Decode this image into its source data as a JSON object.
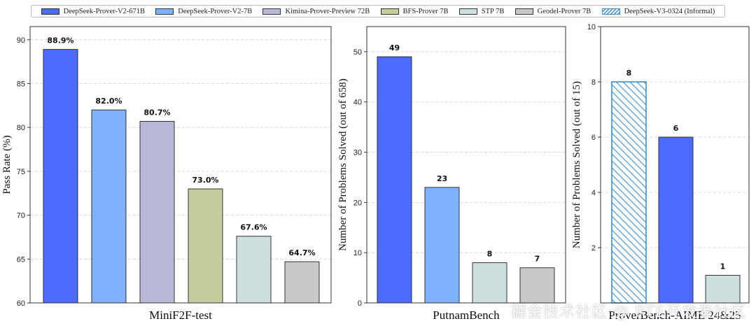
{
  "legend": {
    "items": [
      {
        "label": "DeepSeek-Prover-V2-671B",
        "color": "#4d6bfe",
        "pattern": "solid"
      },
      {
        "label": "DeepSeek-Prover-V2-7B",
        "color": "#7fb2fe",
        "pattern": "solid"
      },
      {
        "label": "Kimina-Prover-Preview 72B",
        "color": "#b8b8d8",
        "pattern": "solid"
      },
      {
        "label": "BFS-Prover 7B",
        "color": "#c5cd9e",
        "pattern": "solid"
      },
      {
        "label": "STP 7B",
        "color": "#cde0df",
        "pattern": "solid"
      },
      {
        "label": "Geodel-Prover 7B",
        "color": "#c8c8c8",
        "pattern": "solid"
      },
      {
        "label": "DeepSeek-V3-0324 (Informal)",
        "color": "#3a8fd0",
        "pattern": "hatch"
      }
    ]
  },
  "chart_data": [
    {
      "type": "bar",
      "title": "",
      "xlabel": "MiniF2F-test",
      "ylabel": "Pass Rate (%)",
      "ylim": [
        60,
        91.5
      ],
      "yticks": [
        60,
        65,
        70,
        75,
        80,
        85,
        90
      ],
      "grid": "horizontal dashed",
      "categories": [
        "DeepSeek-Prover-V2-671B",
        "DeepSeek-Prover-V2-7B",
        "Kimina-Prover-Preview 72B",
        "BFS-Prover 7B",
        "STP 7B",
        "Geodel-Prover 7B"
      ],
      "values": [
        88.9,
        82.0,
        80.7,
        73.0,
        67.6,
        64.7
      ],
      "labels": [
        "88.9%",
        "82.0%",
        "80.7%",
        "73.0%",
        "67.6%",
        "64.7%"
      ],
      "colors": [
        "#4d6bfe",
        "#7fb2fe",
        "#b8b8d8",
        "#c5cd9e",
        "#cde0df",
        "#c8c8c8"
      ],
      "patterns": [
        "solid",
        "solid",
        "solid",
        "solid",
        "solid",
        "solid"
      ]
    },
    {
      "type": "bar",
      "title": "",
      "xlabel": "PutnamBench",
      "ylabel": "Number of Problems Solved (out of 658)",
      "ylim": [
        0,
        55
      ],
      "yticks": [
        0,
        10,
        20,
        30,
        40,
        50
      ],
      "grid": "horizontal dashed",
      "categories": [
        "DeepSeek-Prover-V2-671B",
        "DeepSeek-Prover-V2-7B",
        "STP 7B",
        "Geodel-Prover 7B"
      ],
      "values": [
        49,
        23,
        8,
        7
      ],
      "labels": [
        "49",
        "23",
        "8",
        "7"
      ],
      "colors": [
        "#4d6bfe",
        "#7fb2fe",
        "#cde0df",
        "#c8c8c8"
      ],
      "patterns": [
        "solid",
        "solid",
        "solid",
        "solid"
      ]
    },
    {
      "type": "bar",
      "title": "",
      "xlabel": "ProverBench-AIME 24&25",
      "ylabel": "Number of Problems Solved (out of 15)",
      "ylim": [
        0,
        10
      ],
      "yticks": [
        2,
        4,
        6,
        8,
        10
      ],
      "grid": "horizontal dashed",
      "categories": [
        "DeepSeek-V3-0324 (Informal)",
        "DeepSeek-Prover-V2-671B",
        "STP 7B"
      ],
      "values": [
        8,
        6,
        1
      ],
      "labels": [
        "8",
        "6",
        "1"
      ],
      "colors": [
        "#3a8fd0",
        "#4d6bfe",
        "#cde0df"
      ],
      "patterns": [
        "hatch",
        "solid",
        "solid"
      ]
    }
  ],
  "watermark": "掘金技术社区 @ RTE开发者社区"
}
